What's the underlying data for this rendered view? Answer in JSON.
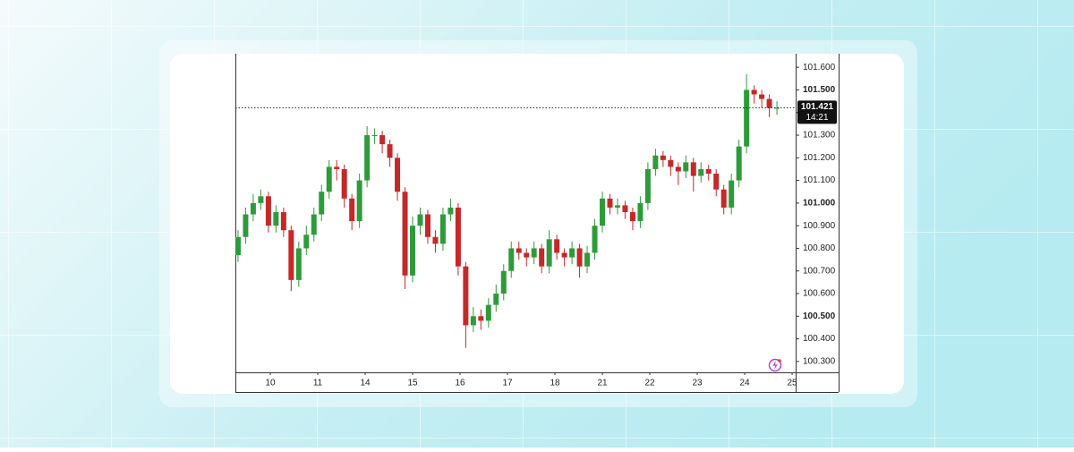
{
  "chart_data": {
    "type": "candlestick",
    "x": [
      -0.68,
      -0.52,
      -0.36,
      -0.2,
      -0.04,
      0.12,
      0.28,
      0.44,
      0.6,
      0.76,
      0.92,
      1.08,
      1.24,
      1.4,
      1.56,
      1.72,
      1.88,
      2.04,
      2.2,
      2.36,
      2.52,
      2.68,
      2.84,
      3,
      3.16,
      3.32,
      3.48,
      3.64,
      3.8,
      3.96,
      4.12,
      4.28,
      4.44,
      4.6,
      4.76,
      4.92,
      5.08,
      5.24,
      5.4,
      5.56,
      5.72,
      5.88,
      6.04,
      6.2,
      6.36,
      6.52,
      6.68,
      6.84,
      7,
      7.16,
      7.32,
      7.48,
      7.64,
      7.8,
      7.96,
      8.12,
      8.28,
      8.44,
      8.6,
      8.76,
      8.92,
      9.08,
      9.24,
      9.4,
      9.56,
      9.72,
      9.88,
      10.04,
      10.2,
      10.36,
      10.52,
      10.68
    ],
    "open": [
      100.77,
      100.85,
      100.95,
      101.0,
      101.03,
      100.9,
      100.96,
      100.88,
      100.66,
      100.8,
      100.86,
      100.95,
      101.05,
      101.16,
      101.15,
      101.02,
      100.92,
      101.1,
      101.3,
      101.3,
      101.26,
      101.2,
      101.05,
      100.68,
      100.9,
      100.95,
      100.85,
      100.82,
      100.95,
      100.98,
      100.72,
      100.46,
      100.5,
      100.48,
      100.55,
      100.6,
      100.7,
      100.8,
      100.78,
      100.76,
      100.8,
      100.72,
      100.84,
      100.78,
      100.76,
      100.8,
      100.72,
      100.78,
      100.9,
      101.02,
      100.98,
      100.99,
      100.96,
      100.92,
      101.0,
      101.15,
      101.21,
      101.19,
      101.16,
      101.14,
      101.18,
      101.12,
      101.15,
      101.13,
      101.06,
      100.98,
      101.1,
      101.25,
      101.5,
      101.48,
      101.46,
      101.42
    ],
    "high": [
      100.88,
      100.98,
      101.04,
      101.06,
      101.05,
      100.99,
      100.98,
      100.9,
      100.83,
      100.9,
      100.98,
      101.08,
      101.19,
      101.19,
      101.17,
      101.04,
      101.13,
      101.34,
      101.33,
      101.32,
      101.28,
      101.22,
      101.07,
      100.94,
      100.98,
      100.97,
      100.88,
      100.98,
      101.02,
      101.0,
      100.74,
      100.54,
      100.53,
      100.58,
      100.64,
      100.73,
      100.83,
      100.83,
      100.8,
      100.83,
      100.82,
      100.88,
      100.86,
      100.8,
      100.83,
      100.82,
      100.81,
      100.93,
      101.05,
      101.04,
      101.02,
      101.01,
      100.98,
      101.03,
      101.18,
      101.24,
      101.23,
      101.21,
      101.18,
      101.21,
      101.2,
      101.18,
      101.17,
      101.15,
      101.08,
      101.13,
      101.28,
      101.57,
      101.52,
      101.5,
      101.48,
      101.45
    ],
    "low": [
      100.74,
      100.82,
      100.92,
      100.97,
      100.87,
      100.87,
      100.85,
      100.61,
      100.63,
      100.77,
      100.83,
      100.92,
      101.02,
      101.1,
      100.98,
      100.88,
      100.89,
      101.07,
      101.26,
      101.22,
      101.16,
      101.01,
      100.62,
      100.65,
      100.86,
      100.82,
      100.78,
      100.79,
      100.92,
      100.68,
      100.36,
      100.43,
      100.44,
      100.45,
      100.52,
      100.57,
      100.67,
      100.75,
      100.72,
      100.73,
      100.69,
      100.69,
      100.75,
      100.72,
      100.73,
      100.67,
      100.69,
      100.75,
      100.87,
      100.95,
      100.95,
      100.93,
      100.88,
      100.89,
      100.97,
      101.12,
      101.16,
      101.12,
      101.08,
      101.11,
      101.05,
      101.09,
      101.1,
      101.03,
      100.95,
      100.95,
      101.07,
      101.22,
      101.44,
      101.42,
      101.38,
      101.39
    ],
    "close": [
      100.85,
      100.95,
      101.0,
      101.03,
      100.9,
      100.96,
      100.88,
      100.66,
      100.8,
      100.86,
      100.95,
      101.05,
      101.16,
      101.15,
      101.02,
      100.92,
      101.1,
      101.3,
      101.3,
      101.26,
      101.2,
      101.05,
      100.68,
      100.9,
      100.95,
      100.85,
      100.82,
      100.95,
      100.98,
      100.72,
      100.46,
      100.5,
      100.48,
      100.55,
      100.6,
      100.7,
      100.8,
      100.78,
      100.76,
      100.8,
      100.72,
      100.84,
      100.78,
      100.76,
      100.8,
      100.72,
      100.78,
      100.9,
      101.02,
      100.98,
      100.99,
      100.96,
      100.92,
      101.0,
      101.15,
      101.21,
      101.19,
      101.16,
      101.14,
      101.18,
      101.12,
      101.15,
      101.13,
      101.06,
      100.98,
      101.1,
      101.25,
      101.5,
      101.48,
      101.46,
      101.42,
      101.421
    ],
    "up_color": "#2e9b3a",
    "down_color": "#c62828",
    "xlim": [
      -0.736,
      11.075
    ],
    "xticks": [
      {
        "value": 0,
        "label": "10"
      },
      {
        "value": 1,
        "label": "11"
      },
      {
        "value": 2,
        "label": "14"
      },
      {
        "value": 3,
        "label": "15"
      },
      {
        "value": 4,
        "label": "16"
      },
      {
        "value": 5,
        "label": "17"
      },
      {
        "value": 6,
        "label": "18"
      },
      {
        "value": 7,
        "label": "21"
      },
      {
        "value": 8,
        "label": "22"
      },
      {
        "value": 9,
        "label": "23"
      },
      {
        "value": 10,
        "label": "24"
      },
      {
        "value": 11,
        "label": "25"
      }
    ],
    "ylim": [
      100.252,
      101.66
    ],
    "yticks": [
      {
        "value": 101.6,
        "label": "101.600"
      },
      {
        "value": 101.5,
        "label": "101.500"
      },
      {
        "value": 101.4,
        "label": "101.400"
      },
      {
        "value": 101.3,
        "label": "101.300"
      },
      {
        "value": 101.2,
        "label": "101.200"
      },
      {
        "value": 101.1,
        "label": "101.100"
      },
      {
        "value": 101.0,
        "label": "101.000"
      },
      {
        "value": 100.9,
        "label": "100.900"
      },
      {
        "value": 100.8,
        "label": "100.800"
      },
      {
        "value": 100.7,
        "label": "100.700"
      },
      {
        "value": 100.6,
        "label": "100.600"
      },
      {
        "value": 100.5,
        "label": "100.500"
      },
      {
        "value": 100.4,
        "label": "100.400"
      },
      {
        "value": 100.3,
        "label": "100.300"
      }
    ],
    "last_price": 101.421,
    "countdown": "14:21"
  }
}
